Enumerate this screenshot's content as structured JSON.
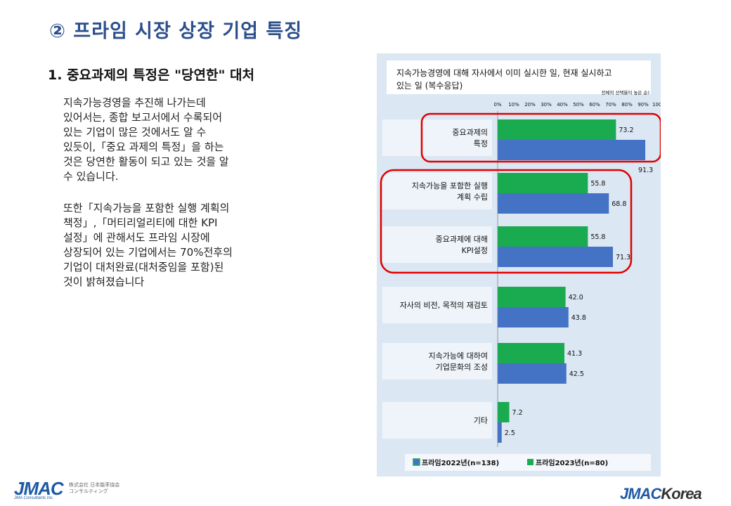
{
  "slide_title": "② 프라임 시장 상장 기업 특징",
  "section_heading": "1. 중요과제의 특정은 \"당연한\" 대처",
  "paragraph_1": "지속가능경영을 추진해 나가는데\n있어서는, 종합 보고서에서  수록되어\n있는 기업이 많은 것에서도 알 수\n있듯이,「중요 과제의 특정」을 하는\n것은 당연한 활동이 되고 있는 것을 알\n수 있습니다.",
  "paragraph_2": "또한「지속가능을 포함한 실행 계획의\n책정」,「머티리얼리티에 대한 KPI\n설정」에 관해서도 프라임 시장에\n상장되어 있는 기업에서는 70%전후의\n기업이 대처완료(대처중임을 포함)된\n것이 밝혀졌습니다",
  "chart_data": {
    "type": "bar",
    "orientation": "horizontal",
    "title": "지속가능경영에 대해 자사에서 이미 실시한 일, 현재 실시하고\n있는 일 (복수응답)",
    "subtitle": "전체의 선택율이 높은 순)",
    "x_ticks": [
      "0%",
      "10%",
      "20%",
      "30%",
      "40%",
      "50%",
      "60%",
      "70%",
      "80%",
      "90%",
      "100%"
    ],
    "xlim": [
      0,
      100
    ],
    "categories": [
      "중요과제의\n특정",
      "지속가능을 포함한 실행\n계획 수립",
      "중요과제에 대해\nKPI설정",
      "자사의 비전, 목적의 재검토",
      "지속가능에 대하여\n기업문화의 조성",
      "기타"
    ],
    "series": [
      {
        "name": "프라임2023년(n=80)",
        "color": "#1aaa50",
        "values": [
          73.2,
          55.8,
          55.8,
          42.0,
          41.3,
          7.2
        ],
        "labels": [
          "73.2",
          "55.8",
          "55.8",
          "42.0",
          "41.3",
          "7.2"
        ]
      },
      {
        "name": "프라임2022년(n=138)",
        "color": "#4472c4",
        "values": [
          91.3,
          68.8,
          71.3,
          43.8,
          42.5,
          2.5
        ],
        "labels": [
          "91.3",
          "68.8",
          "71.3",
          "43.8",
          "42.5",
          "2.5"
        ]
      }
    ],
    "legend": [
      "프라임2022년(n=138)",
      "프라임2023년(n=80)"
    ],
    "legend_position": "bottom",
    "highlight_color": "#e00000"
  },
  "logos": {
    "left_mark": "JMAC",
    "left_sub": "JMA Consultants Inc.",
    "left_jp": "株式会社 日本能率協会\nコンサルティング",
    "right_mark": "JMAC",
    "right_suffix": "Korea"
  }
}
